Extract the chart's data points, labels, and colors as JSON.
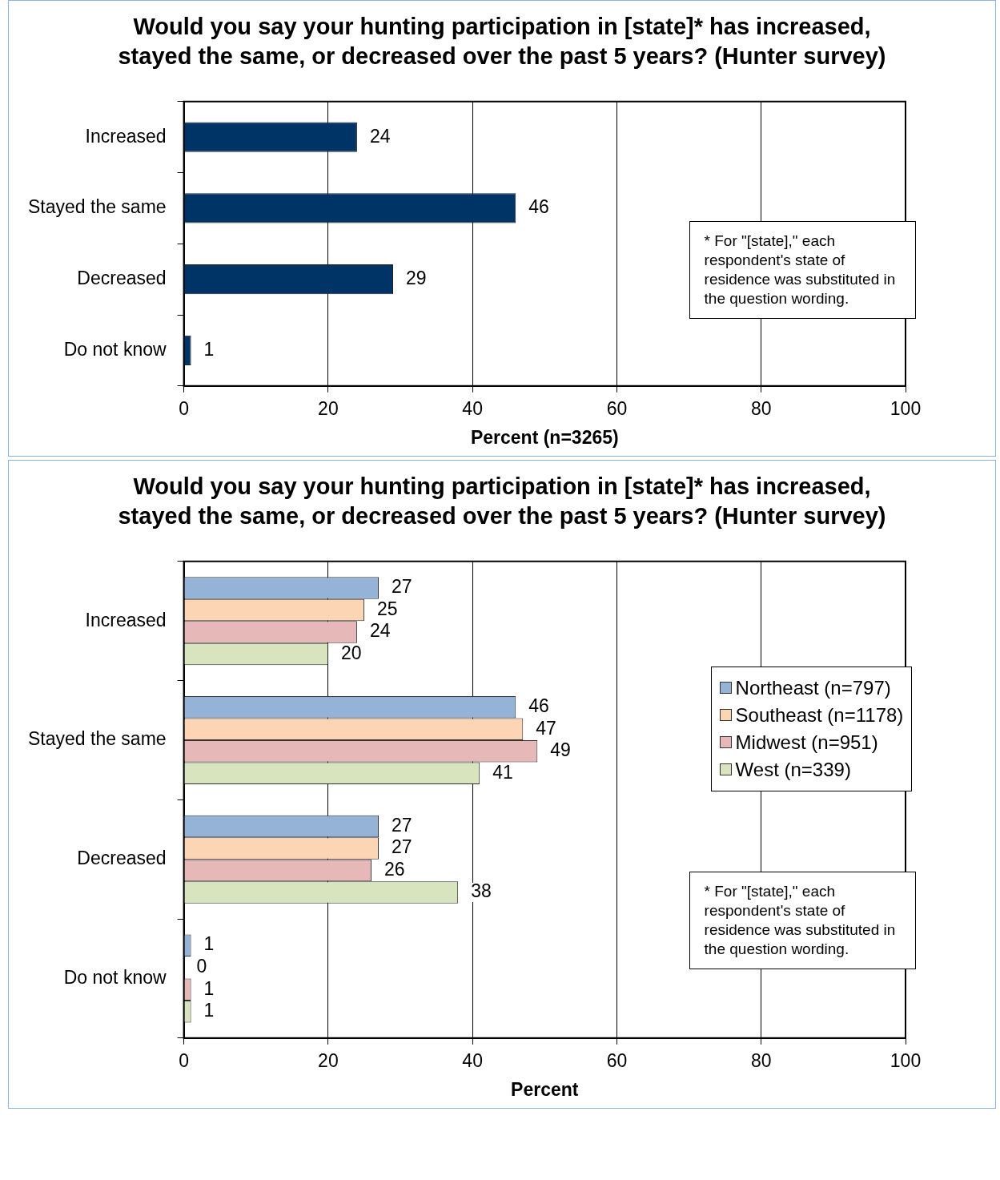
{
  "chart_data": [
    {
      "type": "bar",
      "orientation": "horizontal",
      "title": "Would you say your hunting participation in [state]* has increased, stayed the same, or decreased over the past 5 years? (Hunter survey)",
      "xlabel": "Percent (n=3265)",
      "categories": [
        "Increased",
        "Stayed the same",
        "Decreased",
        "Do not know"
      ],
      "values": [
        24,
        46,
        29,
        1
      ],
      "color": "#003366",
      "xlim": [
        0,
        100
      ],
      "xticks": [
        0,
        20,
        40,
        60,
        80,
        100
      ],
      "grid": "x",
      "data_labels": true,
      "annotations": [
        "* For \"[state],\" each respondent's state of residence was substituted in the question wording."
      ]
    },
    {
      "type": "bar",
      "orientation": "horizontal",
      "title": "Would you say your hunting participation in [state]* has increased, stayed the same, or decreased over the past 5 years? (Hunter survey)",
      "xlabel": "Percent",
      "categories": [
        "Increased",
        "Stayed the same",
        "Decreased",
        "Do not know"
      ],
      "series": [
        {
          "name": "Northeast (n=797)",
          "color": "#95b3d7",
          "values": [
            27,
            46,
            27,
            1
          ]
        },
        {
          "name": "Southeast (n=1178)",
          "color": "#fcd5b5",
          "values": [
            25,
            47,
            27,
            0
          ]
        },
        {
          "name": "Midwest (n=951)",
          "color": "#e6b9b8",
          "values": [
            24,
            49,
            26,
            1
          ]
        },
        {
          "name": "West (n=339)",
          "color": "#d7e4bd",
          "values": [
            20,
            41,
            38,
            1
          ]
        }
      ],
      "xlim": [
        0,
        100
      ],
      "xticks": [
        0,
        20,
        40,
        60,
        80,
        100
      ],
      "grid": "x",
      "data_labels": true,
      "legend": "right",
      "annotations": [
        "* For \"[state],\" each respondent's state of residence was substituted in the question wording."
      ]
    }
  ]
}
